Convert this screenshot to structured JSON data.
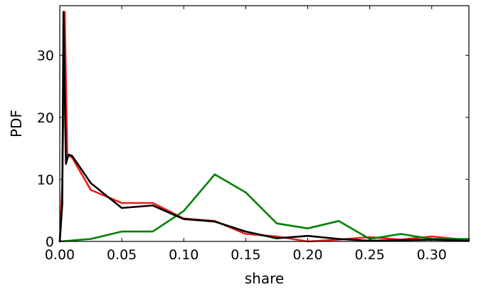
{
  "chart_data": {
    "type": "line",
    "title": "",
    "xlabel": "share",
    "ylabel": "PDF",
    "xlim": [
      0.0,
      0.33
    ],
    "ylim": [
      0,
      38
    ],
    "xticks": [
      0.0,
      0.05,
      0.1,
      0.15,
      0.2,
      0.25,
      0.3
    ],
    "xtick_labels": [
      "0.00",
      "0.05",
      "0.10",
      "0.15",
      "0.20",
      "0.25",
      "0.30"
    ],
    "yticks": [
      0,
      10,
      20,
      30
    ],
    "ytick_labels": [
      "0",
      "10",
      "20",
      "30"
    ],
    "grid": false,
    "legend": "none",
    "series": [
      {
        "color": "#ee1c1c",
        "x": [
          0.0,
          0.002,
          0.004,
          0.006,
          0.01,
          0.025,
          0.05,
          0.075,
          0.1,
          0.125,
          0.15,
          0.175,
          0.2,
          0.225,
          0.25,
          0.275,
          0.3,
          0.33
        ],
        "y": [
          0,
          9,
          37,
          14,
          13.5,
          8.3,
          6.2,
          6.2,
          3.7,
          3.3,
          1.2,
          0.8,
          0.0,
          0.3,
          0.7,
          0.3,
          0.8,
          0.2
        ]
      },
      {
        "color": "#008000",
        "x": [
          0.0,
          0.025,
          0.05,
          0.075,
          0.1,
          0.125,
          0.15,
          0.175,
          0.2,
          0.225,
          0.25,
          0.275,
          0.3,
          0.33
        ],
        "y": [
          0,
          0.4,
          1.6,
          1.6,
          4.9,
          10.8,
          7.9,
          2.9,
          2.1,
          3.3,
          0.4,
          1.2,
          0.4,
          0.4
        ]
      },
      {
        "color": "#000000",
        "x": [
          0.0,
          0.002,
          0.003,
          0.005,
          0.007,
          0.01,
          0.025,
          0.05,
          0.075,
          0.1,
          0.125,
          0.15,
          0.175,
          0.2,
          0.225,
          0.25,
          0.275,
          0.3,
          0.33
        ],
        "y": [
          0,
          6,
          37,
          12.5,
          14,
          13.8,
          9.4,
          5.4,
          5.8,
          3.6,
          3.2,
          1.6,
          0.5,
          0.9,
          0.4,
          0.1,
          0.2,
          0.3,
          0.1
        ]
      }
    ]
  }
}
